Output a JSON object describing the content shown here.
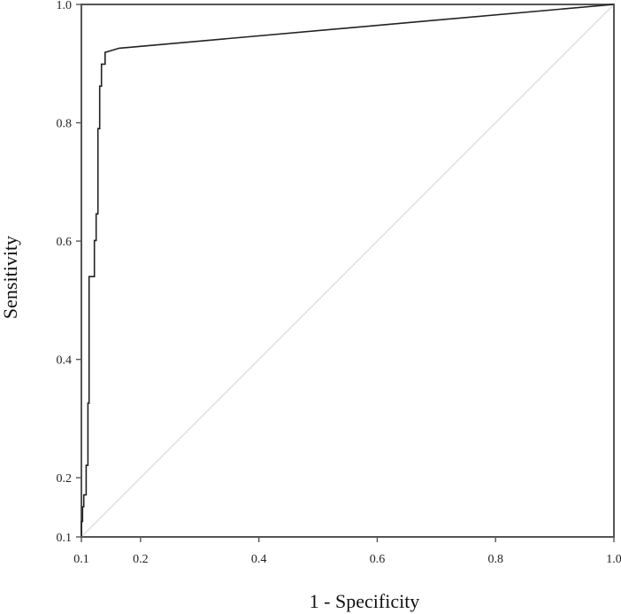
{
  "chart_data": {
    "type": "line",
    "title": "",
    "xlabel": "1 - Specificity",
    "ylabel": "Sensitivity",
    "xlim": [
      0.1,
      1.0
    ],
    "ylim": [
      0.1,
      1.0
    ],
    "x_ticks": [
      0.1,
      0.2,
      0.4,
      0.6,
      0.8,
      1.0
    ],
    "y_ticks": [
      0.1,
      0.2,
      0.4,
      0.6,
      0.8,
      1.0
    ],
    "x_tick_labels": [
      "0.1",
      "0.2",
      "0.4",
      "0.6",
      "0.8",
      "1.0"
    ],
    "y_tick_labels": [
      "0.1",
      "0.2",
      "0.4",
      "0.6",
      "0.8",
      "1.0"
    ],
    "grid": false,
    "legend": "none",
    "series": [
      {
        "x": [
          0.1,
          0.1,
          0.102,
          0.102,
          0.104,
          0.104,
          0.108,
          0.108,
          0.111,
          0.111,
          0.113,
          0.113,
          0.122,
          0.122,
          0.125,
          0.125,
          0.128,
          0.128,
          0.131,
          0.131,
          0.134,
          0.134,
          0.14,
          0.14,
          0.164,
          1.0
        ],
        "y": [
          0.1,
          0.126,
          0.126,
          0.151,
          0.151,
          0.171,
          0.171,
          0.221,
          0.221,
          0.326,
          0.326,
          0.54,
          0.54,
          0.601,
          0.601,
          0.646,
          0.646,
          0.79,
          0.79,
          0.862,
          0.862,
          0.899,
          0.899,
          0.919,
          0.926,
          1.0
        ],
        "color": "#222222",
        "style": "step"
      },
      {
        "x": [
          0.1,
          1.0
        ],
        "y": [
          0.1,
          1.0
        ],
        "color": "#d8d8d8",
        "style": "reference"
      }
    ]
  }
}
